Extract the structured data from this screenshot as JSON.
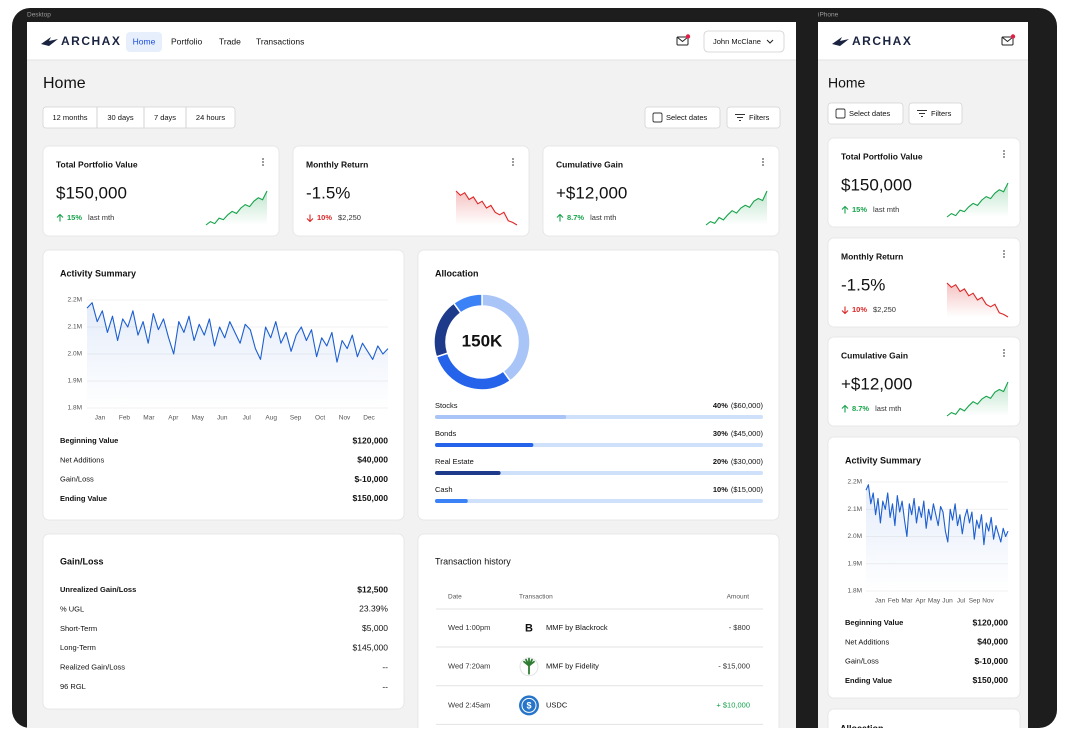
{
  "frame_labels": [
    "Desktop",
    "iPhone"
  ],
  "brand": "ARCHAX",
  "nav": [
    "Home",
    "Portfolio",
    "Trade",
    "Transactions"
  ],
  "user": "John McClane",
  "page_title": "Home",
  "ranges": [
    "12 months",
    "30 days",
    "7 days",
    "24 hours"
  ],
  "buttons": [
    "Select dates",
    "Filters"
  ],
  "kpis": [
    {
      "title": "Total Portfolio Value",
      "value": "$150,000",
      "change": "15%",
      "note": "last mth",
      "color": "#16a34a",
      "spark": [
        2,
        3,
        2.4,
        4,
        3.6,
        5,
        6,
        5.4,
        7,
        8,
        7.4,
        9,
        10,
        9.4,
        12
      ]
    },
    {
      "title": "Monthly Return",
      "value": "-1.5%",
      "change": "10%",
      "note": "$2,250",
      "color": "#dc2626",
      "spark": [
        10,
        9,
        9.6,
        8,
        8.6,
        7,
        7.6,
        6,
        6.6,
        5,
        4.4,
        5,
        3,
        2.6,
        2
      ]
    },
    {
      "title": "Cumulative Gain",
      "value": "+$12,000",
      "change": "8.7%",
      "note": "last mth",
      "color": "#16a34a",
      "spark": [
        2,
        3,
        2.5,
        4.2,
        3.5,
        5,
        6.2,
        5.5,
        7,
        7.8,
        7.2,
        9,
        9.8,
        9.2,
        12
      ]
    }
  ],
  "activity": {
    "type": "line",
    "title": "Activity Summary",
    "color": "#1d5fd1",
    "ylim": [
      1.8,
      2.2
    ],
    "yticks": [
      {
        "value": 2.2,
        "label": "2.2M"
      },
      {
        "value": 2.1,
        "label": "2.1M"
      },
      {
        "value": 2.0,
        "label": "2.0M"
      },
      {
        "value": 1.9,
        "label": "1.9M"
      },
      {
        "value": 1.8,
        "label": "1.8M"
      }
    ],
    "months": [
      "Jan",
      "Feb",
      "Mar",
      "Apr",
      "May",
      "Jun",
      "Jul",
      "Aug",
      "Sep",
      "Oct",
      "Nov",
      "Dec"
    ],
    "mobile_months": [
      "Jan",
      "Feb",
      "Mar",
      "Apr",
      "May",
      "Jun",
      "Jul",
      "Sep",
      "Nov"
    ],
    "values": [
      2.17,
      2.19,
      2.12,
      2.16,
      2.08,
      2.14,
      2.05,
      2.13,
      2.1,
      2.16,
      2.07,
      2.12,
      2.04,
      2.15,
      2.09,
      2.13,
      2.06,
      2.0,
      2.12,
      2.08,
      2.14,
      2.05,
      2.11,
      2.07,
      2.13,
      2.03,
      2.1,
      2.06,
      2.12,
      2.08,
      2.04,
      2.11,
      2.09,
      2.02,
      1.98,
      2.1,
      2.06,
      2.12,
      2.04,
      2.08,
      2.01,
      2.07,
      2.1,
      2.05,
      2.09,
      1.99,
      2.06,
      2.03,
      2.08,
      1.97,
      2.05,
      2.02,
      2.07,
      1.99,
      2.04,
      2.01,
      1.98,
      2.03,
      2.0,
      2.02
    ],
    "rows": [
      {
        "label": "Beginning Value",
        "value": "$120,000"
      },
      {
        "label": "Net Additions",
        "value": "$40,000"
      },
      {
        "label": "Gain/Loss",
        "value": "$-10,000"
      },
      {
        "label": "Ending Value",
        "value": "$150,000"
      }
    ]
  },
  "allocation": {
    "type": "donut",
    "title": "Allocation",
    "center": "150K",
    "categories": [
      "Stocks",
      "Bonds",
      "Real Estate",
      "Cash"
    ],
    "values": [
      40,
      30,
      20,
      10
    ],
    "value_labels": [
      "40%",
      "30%",
      "20%",
      "10%"
    ],
    "amounts": [
      "($60,000)",
      "($45,000)",
      "($30,000)",
      "($15,000)"
    ],
    "colors": [
      "#a9c5f7",
      "#2563eb",
      "#1e3a8a",
      "#3b82f6"
    ]
  },
  "gain_loss": {
    "title": "Gain/Loss",
    "rows": [
      {
        "label": "Unrealized Gain/Loss",
        "value": "$12,500"
      },
      {
        "label": "% UGL",
        "value": "23.39%"
      },
      {
        "label": "Short-Term",
        "value": "$5,000"
      },
      {
        "label": "Long-Term",
        "value": "$145,000"
      },
      {
        "label": "Realized Gain/Loss",
        "value": "--"
      },
      {
        "label": "96 RGL",
        "value": "--"
      }
    ]
  },
  "transactions": {
    "title": "Transaction history",
    "headers": [
      "Date",
      "Transaction",
      "Amount"
    ],
    "rows": [
      {
        "date": "Wed 1:00pm",
        "icon": "B",
        "name": "MMF by Blackrock",
        "amount": "- $800"
      },
      {
        "date": "Wed 7:20am",
        "name": "MMF by Fidelity",
        "amount": "- $15,000"
      },
      {
        "date": "Wed 2:45am",
        "icon": "$",
        "name": "USDC",
        "amount": "+ $10,000"
      }
    ]
  }
}
